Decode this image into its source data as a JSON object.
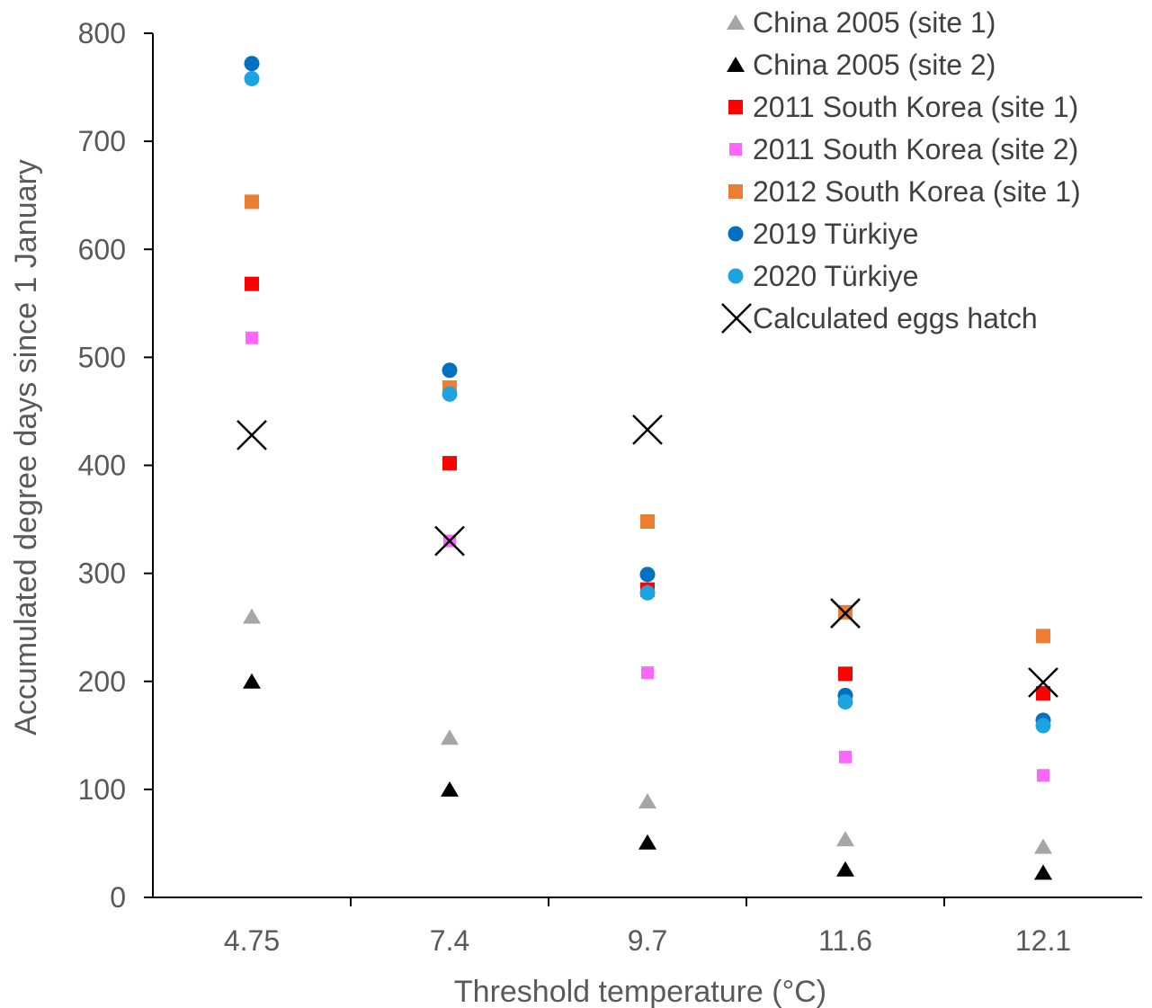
{
  "chart_data": {
    "type": "scatter",
    "title": "",
    "xlabel": "Threshold temperature (°C)",
    "ylabel": "Accumulated degree days since 1 January",
    "categories": [
      "4.75",
      "7.4",
      "9.7",
      "11.6",
      "12.1"
    ],
    "ylim": [
      0,
      800
    ],
    "yticks": [
      0,
      100,
      200,
      300,
      400,
      500,
      600,
      700,
      800
    ],
    "grid": false,
    "legend_position": "top-right",
    "series": [
      {
        "name": "China 2005 (site 1)",
        "marker": "triangle",
        "color": "#a6a6a6",
        "values": [
          260,
          148,
          89,
          54,
          47
        ]
      },
      {
        "name": "China 2005 (site 2)",
        "marker": "triangle",
        "color": "#000000",
        "values": [
          200,
          100,
          51,
          26,
          23
        ]
      },
      {
        "name": "2011 South Korea (site 1)",
        "marker": "square",
        "color": "#ff0000",
        "values": [
          568,
          402,
          285,
          207,
          189
        ]
      },
      {
        "name": "2011 South Korea (site 2)",
        "marker": "square-small",
        "color": "#ff66ff",
        "values": [
          518,
          330,
          208,
          130,
          113
        ]
      },
      {
        "name": "2012 South Korea (site 1)",
        "marker": "square",
        "color": "#ed7d31",
        "values": [
          644,
          472,
          348,
          264,
          242
        ]
      },
      {
        "name": "2019 Türkiye",
        "marker": "circle",
        "color": "#0070c0",
        "values": [
          772,
          488,
          299,
          187,
          164
        ]
      },
      {
        "name": "2020 Türkiye",
        "marker": "circle",
        "color": "#1ca3e0",
        "values": [
          758,
          466,
          282,
          181,
          159
        ]
      },
      {
        "name": "Calculated eggs hatch",
        "marker": "cross",
        "color": "#000000",
        "values": [
          428,
          330,
          433,
          263,
          199
        ]
      }
    ]
  }
}
